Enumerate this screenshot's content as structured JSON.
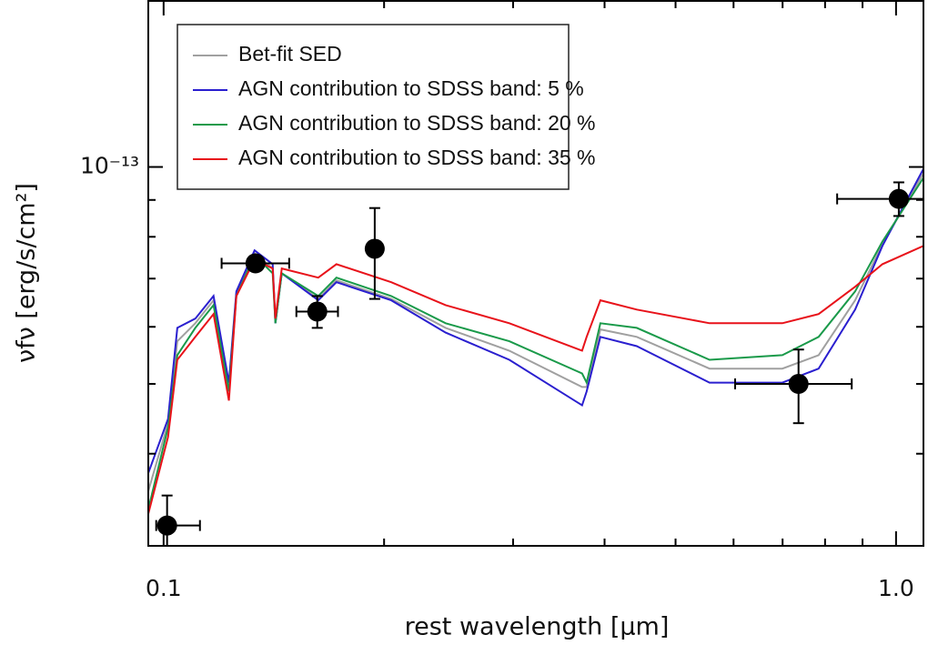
{
  "chart_data": {
    "type": "line",
    "xlabel": "rest wavelength [μm]",
    "ylabel": "νfν [erg/s/cm²]",
    "xscale": "log",
    "yscale": "log",
    "xlim": [
      0.0953,
      1.09
    ],
    "ylim": [
      2.98e-14,
      1.7e-13
    ],
    "xticks": [
      0.1,
      {
        "value": 1,
        "label": "1.0"
      }
    ],
    "xminor_ticks": [
      0.2,
      0.3,
      0.4,
      0.5,
      0.6,
      0.7,
      0.8,
      0.9
    ],
    "yticks": [
      {
        "value": 1e-13,
        "label": "10⁻¹³"
      }
    ],
    "yminor_ticks": [
      4e-14,
      5e-14,
      6e-14,
      7e-14,
      8e-14,
      9e-14
    ],
    "legend": "upper left",
    "x": [
      0.0953,
      0.1014,
      0.1044,
      0.1105,
      0.117,
      0.1228,
      0.1257,
      0.1331,
      0.1409,
      0.1421,
      0.145,
      0.1626,
      0.1722,
      0.2045,
      0.2427,
      0.2965,
      0.3727,
      0.3781,
      0.3948,
      0.4426,
      0.5564,
      0.6994,
      0.7841,
      0.8792,
      0.958,
      1.09
    ],
    "series": [
      {
        "name": "Bet-fit SED",
        "color": "#a0a0a0",
        "values": [
          3.55e-14,
          4.41e-14,
          5.73e-14,
          6.07e-14,
          6.53e-14,
          4.95e-14,
          6.68e-14,
          7.59e-14,
          7.23e-14,
          6.07e-14,
          7.12e-14,
          6.56e-14,
          6.96e-14,
          6.56e-14,
          5.98e-14,
          5.56e-14,
          4.95e-14,
          4.95e-14,
          5.95e-14,
          5.81e-14,
          5.25e-14,
          5.25e-14,
          5.48e-14,
          6.53e-14,
          7.81e-14,
          9.8e-14
        ]
      },
      {
        "name": "AGN contribution to SDSS band: 5 %",
        "color": "#2a1fcf",
        "values": [
          3.76e-14,
          4.47e-14,
          5.98e-14,
          6.16e-14,
          6.62e-14,
          5.02e-14,
          6.72e-14,
          7.66e-14,
          7.33e-14,
          6.07e-14,
          7.12e-14,
          6.53e-14,
          6.92e-14,
          6.53e-14,
          5.89e-14,
          5.4e-14,
          4.67e-14,
          4.88e-14,
          5.81e-14,
          5.64e-14,
          5.02e-14,
          5.02e-14,
          5.25e-14,
          6.34e-14,
          7.77e-14,
          9.94e-14
        ]
      },
      {
        "name": "AGN contribution to SDSS band: 20 %",
        "color": "#1a9a4a",
        "values": [
          3.35e-14,
          4.35e-14,
          5.48e-14,
          5.98e-14,
          6.43e-14,
          4.88e-14,
          6.62e-14,
          7.54e-14,
          7.12e-14,
          6.07e-14,
          7.12e-14,
          6.62e-14,
          7.02e-14,
          6.62e-14,
          6.07e-14,
          5.73e-14,
          5.17e-14,
          5.02e-14,
          6.07e-14,
          5.98e-14,
          5.4e-14,
          5.48e-14,
          5.81e-14,
          6.72e-14,
          7.88e-14,
          9.66e-14
        ]
      },
      {
        "name": "AGN contribution to SDSS band: 35 %",
        "color": "#e8121a",
        "values": [
          3.3e-14,
          4.22e-14,
          5.4e-14,
          5.81e-14,
          6.25e-14,
          4.74e-14,
          6.62e-14,
          7.44e-14,
          7.23e-14,
          6.16e-14,
          7.23e-14,
          7.02e-14,
          7.33e-14,
          6.92e-14,
          6.43e-14,
          6.07e-14,
          5.56e-14,
          5.81e-14,
          6.53e-14,
          6.34e-14,
          6.07e-14,
          6.07e-14,
          6.25e-14,
          6.82e-14,
          7.33e-14,
          7.77e-14
        ]
      }
    ],
    "points": {
      "color": "#000000",
      "x": [
        0.1011,
        0.1335,
        0.1621,
        0.1942,
        0.736,
        1.0087
      ],
      "y": [
        3.18e-14,
        7.35e-14,
        6.3e-14,
        7.7e-14,
        5e-14,
        9.03e-14
      ],
      "x_low": [
        0.0977,
        0.12,
        0.1518,
        0.1942,
        0.603,
        0.831
      ],
      "x_high": [
        0.1121,
        0.1484,
        0.173,
        0.1942,
        0.87,
        1.09
      ],
      "y_low": [
        2.9e-14,
        7.19e-14,
        5.98e-14,
        6.56e-14,
        4.41e-14,
        8.55e-14
      ],
      "y_high": [
        3.5e-14,
        7.52e-14,
        6.62e-14,
        8.77e-14,
        5.58e-14,
        9.52e-14
      ]
    }
  }
}
